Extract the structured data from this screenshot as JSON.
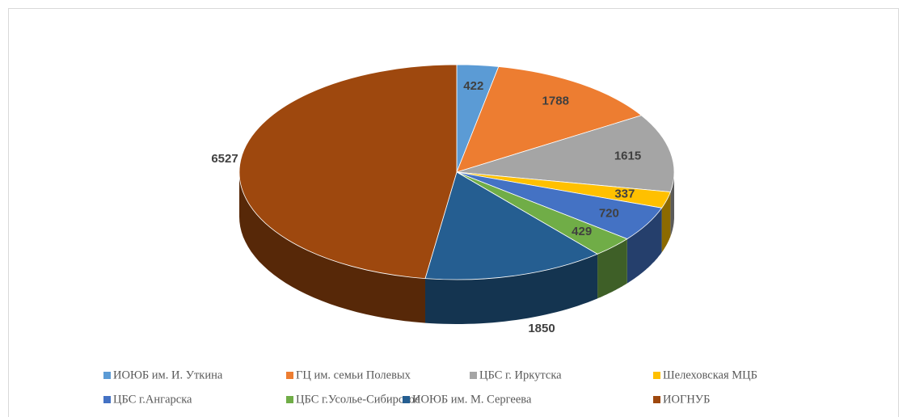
{
  "chart_data": {
    "type": "pie3d",
    "categories": [
      "ИОЮБ им. И. Уткина",
      "ГЦ им. семьи Полевых",
      "ЦБС г. Иркутска",
      "Шелеховская МЦБ",
      "ЦБС г.Ангарска",
      "ЦБС г.Усолье-Сибирское",
      "ИОЮБ им. М. Сергеева",
      "ИОГНУБ"
    ],
    "values": [
      422,
      1788,
      1615,
      337,
      720,
      429,
      1850,
      6527
    ],
    "colors": [
      "#5b9bd5",
      "#ed7d31",
      "#a5a5a5",
      "#ffc000",
      "#4472c4",
      "#70ad47",
      "#255e91",
      "#9e480e"
    ],
    "legend": "bottom"
  }
}
